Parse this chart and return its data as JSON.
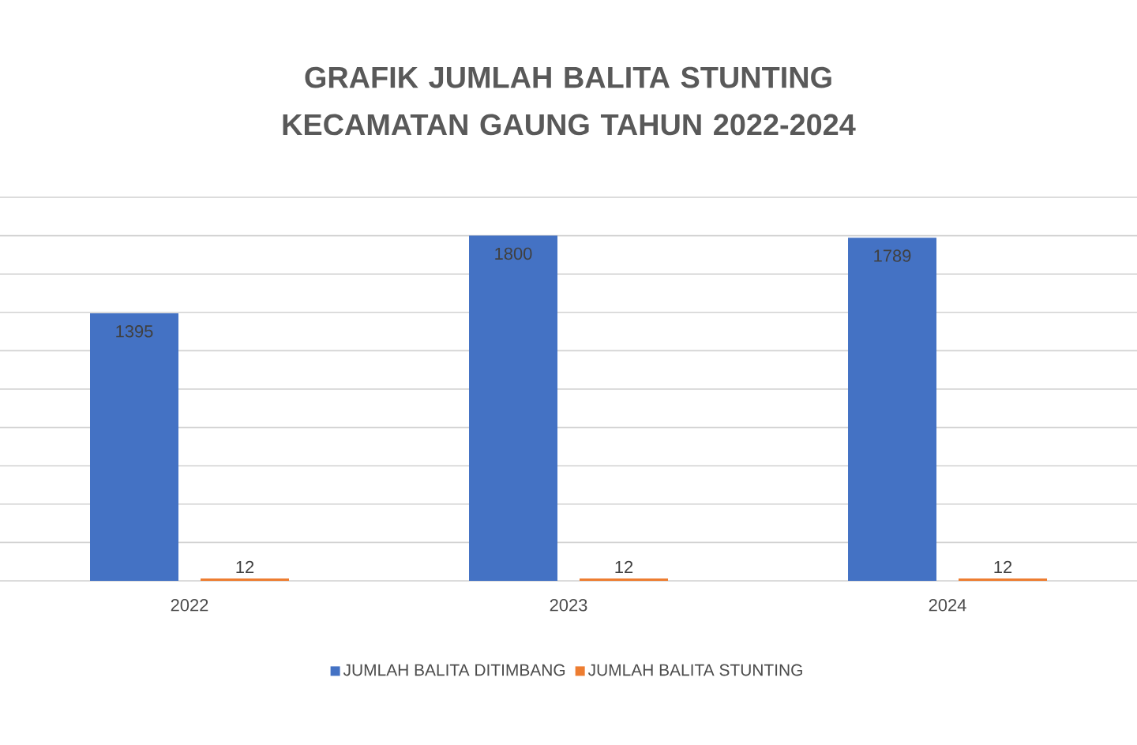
{
  "chart_data": {
    "type": "bar",
    "title": "GRAFIK JUMLAH BALITA STUNTING KECAMATAN GAUNG TAHUN 2022-2024",
    "categories": [
      "2022",
      "2023",
      "2024"
    ],
    "series": [
      {
        "name": "JUMLAH BALITA DITIMBANG",
        "color": "#4472c4",
        "values": [
          1395,
          1800,
          1789
        ]
      },
      {
        "name": "JUMLAH BALITA STUNTING",
        "color": "#ed7d31",
        "values": [
          12,
          12,
          12
        ]
      }
    ],
    "ylim": [
      0,
      2000
    ],
    "yticks": [
      {
        "value": 0,
        "label": null
      },
      {
        "value": 200,
        "label": null
      },
      {
        "value": 400,
        "label": null
      },
      {
        "value": 600,
        "label": null
      },
      {
        "value": 800,
        "label": null
      },
      {
        "value": 1000,
        "label": null
      },
      {
        "value": 1200,
        "label": null
      },
      {
        "value": 1400,
        "label": null
      },
      {
        "value": 1600,
        "label": null
      },
      {
        "value": 1800,
        "label": null
      },
      {
        "value": 2000,
        "label": null
      }
    ],
    "tick_labels": "x",
    "grid": "y",
    "legend": "bottom",
    "data_labels": true
  }
}
